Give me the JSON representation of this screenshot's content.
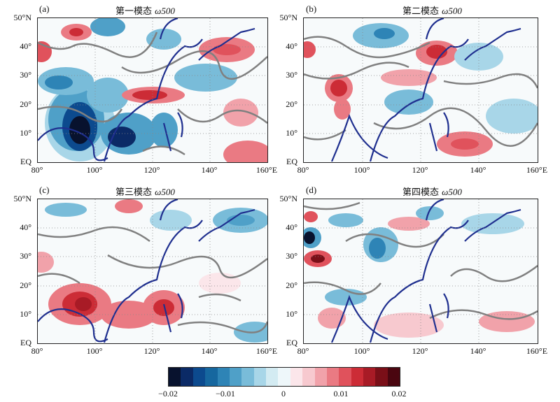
{
  "panels": [
    {
      "tag": "(a)",
      "title_cn": "第一模态",
      "title_var": "ω500"
    },
    {
      "tag": "(b)",
      "title_cn": "第二模态",
      "title_var": "ω500"
    },
    {
      "tag": "(c)",
      "title_cn": "第三模态",
      "title_var": "ω500"
    },
    {
      "tag": "(d)",
      "title_cn": "第四模态",
      "title_var": "ω500"
    }
  ],
  "axes": {
    "y_ticks": [
      "50°N",
      "40°",
      "30°",
      "20°",
      "10°",
      "EQ"
    ],
    "x_ticks": [
      "80°",
      "100°",
      "120°",
      "140°",
      "160°E"
    ]
  },
  "colorbar": {
    "tick_labels": [
      "−0.02",
      "−0.01",
      "0",
      "0.01",
      "0.02"
    ],
    "colors": [
      "#08122e",
      "#0b2a66",
      "#0c4a8e",
      "#16679f",
      "#2e84b6",
      "#4fa0c8",
      "#79bcd9",
      "#a8d6e8",
      "#d3ebf2",
      "#eef7fa",
      "#fbe6ea",
      "#f7c9cf",
      "#f1a2aa",
      "#ea7a83",
      "#e0525c",
      "#cc2c36",
      "#a81b26",
      "#7a0f18",
      "#4a0610"
    ]
  },
  "map": {
    "lon_range": [
      80,
      160
    ],
    "lat_range": [
      0,
      50
    ],
    "coast_color": "#1f2f8f",
    "contour_color": "#808080",
    "grid_style": "dotted"
  }
}
